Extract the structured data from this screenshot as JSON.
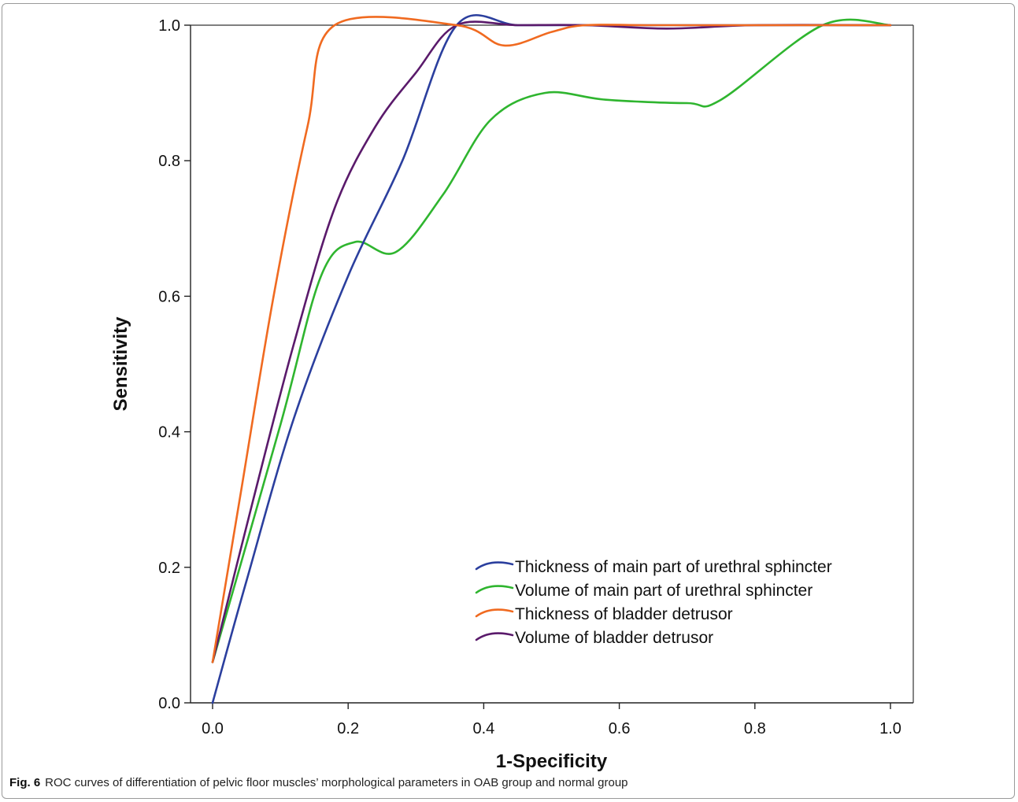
{
  "caption": {
    "label": "Fig. 6",
    "text": "ROC curves of differentiation of pelvic floor muscles’ morphological parameters in OAB group and normal group"
  },
  "chart_data": {
    "type": "line",
    "xlabel": "1-Specificity",
    "ylabel": "Sensitivity",
    "xlim": [
      0,
      1
    ],
    "ylim": [
      0,
      1
    ],
    "xticks": [
      "0.0",
      "0.2",
      "0.4",
      "0.6",
      "0.8",
      "1.0"
    ],
    "yticks": [
      "0.0",
      "0.2",
      "0.4",
      "0.6",
      "0.8",
      "1.0"
    ],
    "grid": false,
    "legend_position": "bottom-right",
    "series": [
      {
        "name": "Thickness of main part of urethral sphincter",
        "color": "#2b3f9e",
        "x": [
          0.0,
          0.05,
          0.12,
          0.2,
          0.28,
          0.36,
          0.45,
          0.55,
          0.65,
          0.8,
          1.0
        ],
        "y": [
          0.0,
          0.18,
          0.42,
          0.63,
          0.8,
          1.0,
          1.0,
          1.0,
          1.0,
          1.0,
          1.0
        ]
      },
      {
        "name": "Volume of main part of urethral sphincter",
        "color": "#2fb52f",
        "x": [
          0.0,
          0.1,
          0.16,
          0.21,
          0.27,
          0.34,
          0.41,
          0.49,
          0.58,
          0.7,
          0.75,
          0.9,
          1.0
        ],
        "y": [
          0.06,
          0.41,
          0.63,
          0.68,
          0.665,
          0.75,
          0.86,
          0.9,
          0.89,
          0.885,
          0.89,
          1.0,
          1.0
        ]
      },
      {
        "name": "Thickness of bladder detrusor",
        "color": "#f06a20",
        "x": [
          0.0,
          0.04,
          0.09,
          0.14,
          0.18,
          0.36,
          0.43,
          0.5,
          0.55,
          0.65,
          0.8,
          1.0
        ],
        "y": [
          0.06,
          0.3,
          0.6,
          0.85,
          1.0,
          1.0,
          0.97,
          0.99,
          1.0,
          1.0,
          1.0,
          1.0
        ]
      },
      {
        "name": "Volume of bladder detrusor",
        "color": "#5a1a6b",
        "x": [
          0.0,
          0.06,
          0.12,
          0.18,
          0.24,
          0.3,
          0.36,
          0.45,
          0.55,
          0.67,
          0.8,
          1.0
        ],
        "y": [
          0.06,
          0.3,
          0.53,
          0.73,
          0.85,
          0.93,
          1.0,
          1.0,
          1.0,
          0.995,
          1.0,
          1.0
        ]
      }
    ]
  }
}
